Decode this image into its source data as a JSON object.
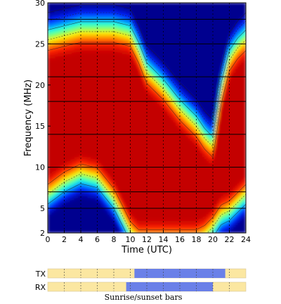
{
  "chart_data": {
    "type": "heatmap",
    "title": "",
    "xlabel": "Time (UTC)",
    "ylabel": "Frequency (MHz)",
    "xlim": [
      0,
      24
    ],
    "ylim": [
      2,
      30
    ],
    "x_ticks": [
      0,
      2,
      4,
      6,
      8,
      10,
      12,
      14,
      16,
      18,
      20,
      22,
      24
    ],
    "y_ticks": [
      2,
      5,
      10,
      15,
      20,
      25,
      30
    ],
    "y_gridlines": [
      2,
      5,
      7,
      10,
      14,
      18,
      21,
      25,
      28,
      30
    ],
    "x_gridlines": [
      2,
      4,
      6,
      8,
      10,
      12,
      14,
      16,
      18,
      20,
      22
    ],
    "colormap": [
      "#00008f",
      "#0022ff",
      "#0099ff",
      "#22ffdd",
      "#88ff66",
      "#ffee00",
      "#ff8800",
      "#ff2200",
      "#c40000"
    ],
    "boundaries": {
      "times": [
        0,
        2,
        4,
        6,
        8,
        10,
        11,
        12,
        14,
        16,
        18,
        19,
        20,
        21,
        22,
        23,
        24
      ],
      "muf": [
        28.5,
        29.0,
        29.5,
        29.5,
        29.5,
        29.0,
        27.0,
        24.5,
        22.5,
        20.0,
        18.0,
        16.5,
        15.5,
        22.0,
        26.0,
        27.5,
        28.5
      ],
      "lof": [
        7.5,
        9.0,
        10.0,
        9.5,
        7.0,
        3.0,
        2.0,
        2.0,
        2.0,
        2.0,
        2.0,
        2.5,
        3.5,
        5.0,
        5.5,
        6.5,
        7.5
      ]
    },
    "sunrise_sunset": {
      "tx": {
        "label": "TX",
        "daylight": [
          10.5,
          21.5
        ]
      },
      "rx": {
        "label": "RX",
        "daylight": [
          9.5,
          20.0
        ]
      },
      "caption": "Sunrise/sunset bars",
      "night_color": "#fbe7a1",
      "day_color": "#6a80e8"
    }
  }
}
